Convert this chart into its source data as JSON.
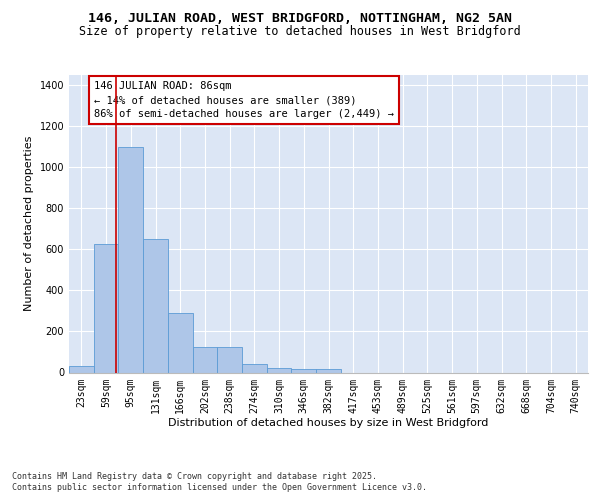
{
  "title_line1": "146, JULIAN ROAD, WEST BRIDGFORD, NOTTINGHAM, NG2 5AN",
  "title_line2": "Size of property relative to detached houses in West Bridgford",
  "xlabel": "Distribution of detached houses by size in West Bridgford",
  "ylabel": "Number of detached properties",
  "categories": [
    "23sqm",
    "59sqm",
    "95sqm",
    "131sqm",
    "166sqm",
    "202sqm",
    "238sqm",
    "274sqm",
    "310sqm",
    "346sqm",
    "382sqm",
    "417sqm",
    "453sqm",
    "489sqm",
    "525sqm",
    "561sqm",
    "597sqm",
    "632sqm",
    "668sqm",
    "704sqm",
    "740sqm"
  ],
  "values": [
    30,
    625,
    1100,
    650,
    290,
    125,
    125,
    40,
    20,
    15,
    15,
    0,
    0,
    0,
    0,
    0,
    0,
    0,
    0,
    0,
    0
  ],
  "bar_color": "#aec6e8",
  "bar_edge_color": "#5b9bd5",
  "vline_x": 1.4,
  "vline_color": "#cc0000",
  "ylim": [
    0,
    1450
  ],
  "yticks": [
    0,
    200,
    400,
    600,
    800,
    1000,
    1200,
    1400
  ],
  "annotation_text": "146 JULIAN ROAD: 86sqm\n← 14% of detached houses are smaller (389)\n86% of semi-detached houses are larger (2,449) →",
  "annotation_box_color": "#cc0000",
  "bg_color": "#dce6f5",
  "footer_line1": "Contains HM Land Registry data © Crown copyright and database right 2025.",
  "footer_line2": "Contains public sector information licensed under the Open Government Licence v3.0.",
  "title_fontsize": 9.5,
  "subtitle_fontsize": 8.5,
  "axis_label_fontsize": 8,
  "tick_fontsize": 7,
  "annotation_fontsize": 7.5
}
